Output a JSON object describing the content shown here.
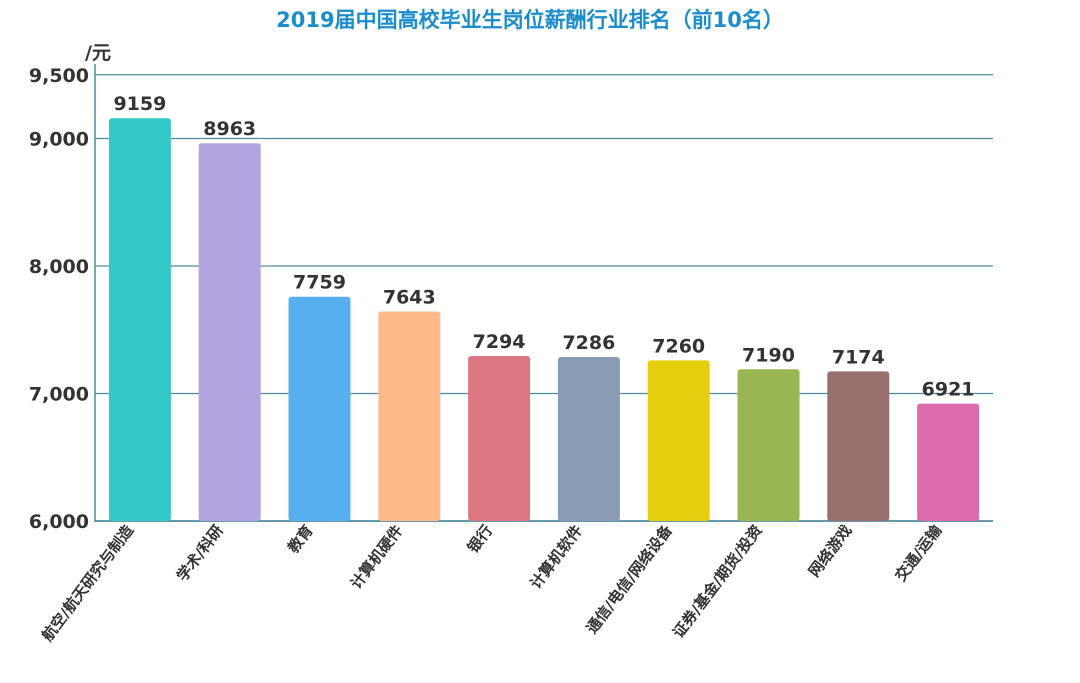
{
  "chart_data": {
    "type": "bar",
    "title": "2019届中国高校毕业生岗位薪酬行业排名（前10名）",
    "y_unit": "/元",
    "categories": [
      "航空/航天研究与制造",
      "学术/科研",
      "教育",
      "计算机硬件",
      "银行",
      "计算机软件",
      "通信/电信/网络设备",
      "证券/基金/期货/投资",
      "网络游戏",
      "交通/运输"
    ],
    "values": [
      9159,
      8963,
      7759,
      7643,
      7294,
      7286,
      7260,
      7190,
      7174,
      6921
    ],
    "data_labels": [
      "9159",
      "8963",
      "7759",
      "7643",
      "7294",
      "7286",
      "7260",
      "7190",
      "7174",
      "6921"
    ],
    "ylim": [
      6000,
      9500
    ],
    "yticks": [
      6000,
      7000,
      8000,
      9000,
      9500
    ],
    "ytick_labels": [
      "6,000",
      "7,000",
      "8,000",
      "9,000",
      "9,500"
    ],
    "grid": true,
    "colors": [
      "#33c9c9",
      "#b3a3e0",
      "#57aff0",
      "#fdb98a",
      "#dd7883",
      "#8a9bb4",
      "#e4cf0f",
      "#99b652",
      "#9a706f",
      "#dd6cae"
    ],
    "title_color": "#1b8ccc",
    "grid_color": "#4f8ba0"
  }
}
